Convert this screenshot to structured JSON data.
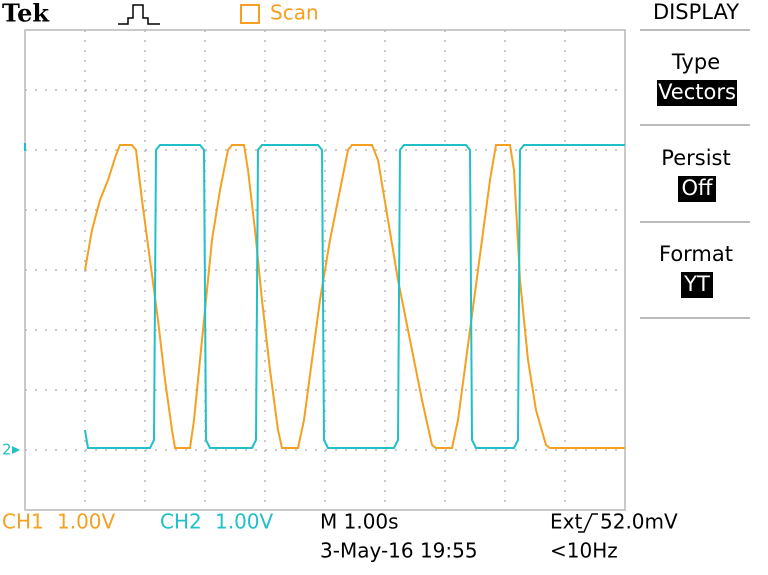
{
  "header": {
    "brand": "Tek",
    "mode": "Scan"
  },
  "menu": {
    "title": "DISPLAY",
    "items": [
      {
        "label": "Type",
        "value": "Vectors"
      },
      {
        "label": "Persist",
        "value": "Off"
      },
      {
        "label": "Format",
        "value": "YT"
      }
    ]
  },
  "ground_marker": "2",
  "footer": {
    "ch1": "CH1",
    "ch1_scale": "1.00V",
    "ch2": "CH2",
    "ch2_scale": "1.00V",
    "timebase": "M 1.00s",
    "date": "3-May-16 19:55",
    "trigger_source": "Ext",
    "trigger_level": "52.0mV",
    "trigger_freq": "<10Hz"
  }
}
